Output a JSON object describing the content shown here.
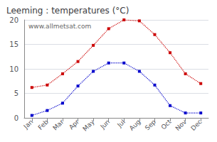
{
  "chart_data": {
    "type": "line",
    "title": "Leeming : temperatures (°C)",
    "categories": [
      "Jan",
      "Feb",
      "Mar",
      "Apr",
      "May",
      "Jun",
      "Jul",
      "Aug",
      "Sep",
      "Oct",
      "Nov",
      "Dec"
    ],
    "series": [
      {
        "color": "#cc0000",
        "marker": "square",
        "line_style": "dotted",
        "values": [
          6.2,
          6.7,
          9.0,
          11.5,
          14.8,
          18.2,
          20.0,
          19.8,
          17.0,
          13.3,
          9.0,
          7.0
        ]
      },
      {
        "color": "#0000cc",
        "marker": "square",
        "line_style": "dotted",
        "values": [
          0.5,
          1.5,
          3.0,
          6.5,
          9.5,
          11.2,
          11.2,
          9.5,
          6.7,
          2.5,
          1.0,
          1.0
        ]
      }
    ],
    "ylim": [
      0,
      20
    ],
    "yticks": [
      0,
      5,
      10,
      15,
      20
    ],
    "grid": true,
    "annotations": [
      "www.allmetsat.com"
    ]
  }
}
